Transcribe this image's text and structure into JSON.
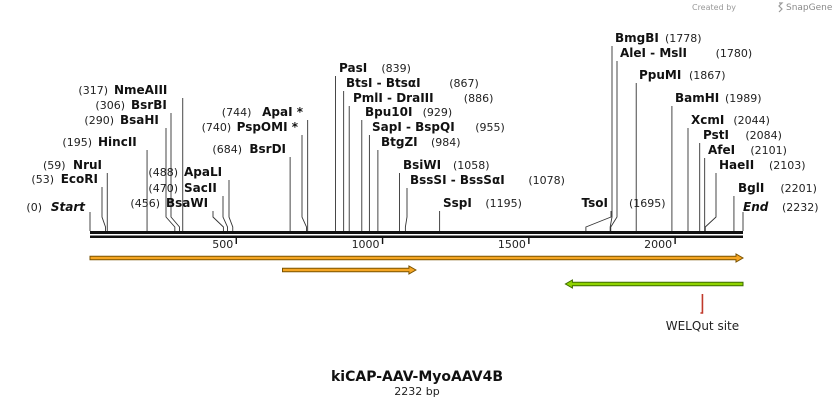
{
  "header": {
    "credit_text": "Created by",
    "brand_name": "SnapGene",
    "logo_icon": "snapgene-logo-icon"
  },
  "plasmid": {
    "name": "kiCAP-AAV-MyoAAV4B",
    "length_label": "2232 bp",
    "length": 2232
  },
  "ruler": {
    "ticks": [
      {
        "value": 500,
        "label": "500"
      },
      {
        "value": 1000,
        "label": "1000"
      },
      {
        "value": 1500,
        "label": "1500"
      },
      {
        "value": 2000,
        "label": "2000"
      }
    ]
  },
  "ends": {
    "start": {
      "name": "Start",
      "pos": 0,
      "pos_label": "(0)"
    },
    "end": {
      "name": "End",
      "pos": 2232,
      "pos_label": "(2232)"
    }
  },
  "sites": [
    {
      "name": "EcoRI",
      "pos": 53,
      "pos_label": "(53)"
    },
    {
      "name": "NruI",
      "pos": 59,
      "pos_label": "(59)"
    },
    {
      "name": "HincII",
      "pos": 195,
      "pos_label": "(195)"
    },
    {
      "name": "BsaHI",
      "pos": 290,
      "pos_label": "(290)"
    },
    {
      "name": "BsrBI",
      "pos": 306,
      "pos_label": "(306)"
    },
    {
      "name": "NmeAIII",
      "pos": 317,
      "pos_label": "(317)"
    },
    {
      "name": "BsaWI",
      "pos": 456,
      "pos_label": "(456)"
    },
    {
      "name": "SacII",
      "pos": 470,
      "pos_label": "(470)"
    },
    {
      "name": "ApaLI",
      "pos": 488,
      "pos_label": "(488)"
    },
    {
      "name": "BsrDI",
      "pos": 684,
      "pos_label": "(684)"
    },
    {
      "name": "PspOMI *",
      "pos": 740,
      "pos_label": "(740)"
    },
    {
      "name": "ApaI *",
      "pos": 744,
      "pos_label": "(744)"
    },
    {
      "name": "PasI",
      "pos": 839,
      "pos_label": "(839)"
    },
    {
      "name": "BtsI - BtsαI",
      "pos": 867,
      "pos_label": "(867)"
    },
    {
      "name": "PmlI - DraIII",
      "pos": 886,
      "pos_label": "(886)"
    },
    {
      "name": "Bpu10I",
      "pos": 929,
      "pos_label": "(929)"
    },
    {
      "name": "SapI - BspQI",
      "pos": 955,
      "pos_label": "(955)"
    },
    {
      "name": "BtgZI",
      "pos": 984,
      "pos_label": "(984)"
    },
    {
      "name": "BsiWI",
      "pos": 1058,
      "pos_label": "(1058)"
    },
    {
      "name": "BssSI - BssSαI",
      "pos": 1078,
      "pos_label": "(1078)"
    },
    {
      "name": "SspI",
      "pos": 1195,
      "pos_label": "(1195)"
    },
    {
      "name": "TsoI",
      "pos": 1695,
      "pos_label": "(1695)"
    },
    {
      "name": "BmgBI",
      "pos": 1778,
      "pos_label": "(1778)"
    },
    {
      "name": "AleI - MslI",
      "pos": 1780,
      "pos_label": "(1780)"
    },
    {
      "name": "PpuMI",
      "pos": 1867,
      "pos_label": "(1867)"
    },
    {
      "name": "BamHI",
      "pos": 1989,
      "pos_label": "(1989)"
    },
    {
      "name": "XcmI",
      "pos": 2044,
      "pos_label": "(2044)"
    },
    {
      "name": "PstI",
      "pos": 2084,
      "pos_label": "(2084)"
    },
    {
      "name": "AfeI",
      "pos": 2101,
      "pos_label": "(2101)"
    },
    {
      "name": "HaeII",
      "pos": 2103,
      "pos_label": "(2103)"
    },
    {
      "name": "BglI",
      "pos": 2201,
      "pos_label": "(2201)"
    }
  ],
  "features": [
    {
      "kind": "orange-forward",
      "start": 0,
      "end": 2232,
      "direction": "forward",
      "color": "#f5a623",
      "outline": "#7a5200"
    },
    {
      "kind": "orange-forward",
      "start": 658,
      "end": 1114,
      "direction": "forward",
      "color": "#f5a623",
      "outline": "#7a5200"
    },
    {
      "kind": "green-reverse",
      "start": 1625,
      "end": 2232,
      "direction": "reverse",
      "color": "#8fd400",
      "outline": "#3e6b00"
    },
    {
      "kind": "primer-site",
      "label": "WELQut site",
      "pos": 2066,
      "color": "#c0392b"
    }
  ],
  "colors": {
    "backbone": "#111111",
    "leader": "#333333"
  }
}
